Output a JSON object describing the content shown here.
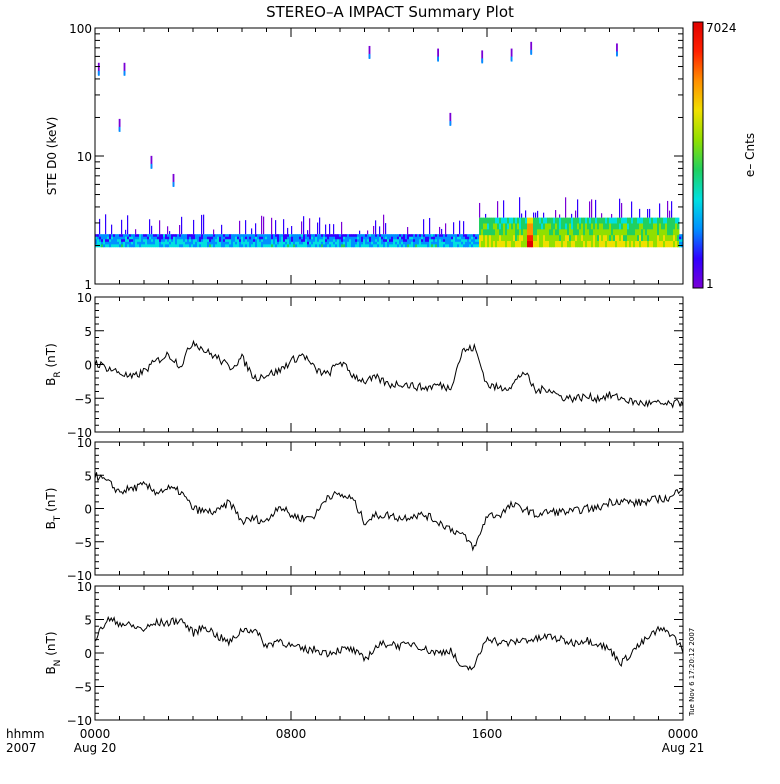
{
  "title": "STEREO–A IMPACT Summary Plot",
  "footer_label": {
    "line1": "hhmm",
    "line2": "2007"
  },
  "timestamp": "Tue Nov  6 17:20:12 2007",
  "x_ticks": [
    {
      "value": 0,
      "label": "0000",
      "sublabel": "Aug 20"
    },
    {
      "value": 8,
      "label": "0800",
      "sublabel": ""
    },
    {
      "value": 16,
      "label": "1600",
      "sublabel": ""
    },
    {
      "value": 24,
      "label": "0000",
      "sublabel": "Aug 21"
    }
  ],
  "chart_data": [
    {
      "type": "heatmap",
      "ylabel": "STE D0 (keV)",
      "yscale": "log",
      "ylim": [
        1,
        100
      ],
      "y_tick_labels": [
        "1",
        "10",
        "100"
      ],
      "x_unit": "hours since 2007-08-20 00:00",
      "xlim": [
        0,
        24
      ],
      "colorbar": {
        "label": "e– Cnts",
        "min": 1,
        "max": 7024,
        "min_label": "1",
        "max_label": "7024"
      },
      "colors": [
        "#7a00d6",
        "#3000ff",
        "#0090ff",
        "#00e0e0",
        "#20d060",
        "#90e000",
        "#f0e000",
        "#ff9000",
        "#ff2000",
        "#e00000"
      ],
      "band": {
        "y_range_keV": [
          1.95,
          2.45
        ],
        "typical_level": "cyan-blue"
      },
      "enhanced_interval": {
        "x_range": [
          15.7,
          23.8
        ],
        "y_range_keV": [
          1.95,
          3.3
        ],
        "level": "green-yellow"
      },
      "peak_interval": {
        "x_range": [
          17.6,
          17.9
        ],
        "level": "red"
      },
      "sporadic_high_points": [
        {
          "x": 0.15,
          "y": 48
        },
        {
          "x": 1.2,
          "y": 48
        },
        {
          "x": 1.0,
          "y": 17.5
        },
        {
          "x": 2.3,
          "y": 9
        },
        {
          "x": 3.2,
          "y": 6.5
        },
        {
          "x": 11.2,
          "y": 65
        },
        {
          "x": 14.0,
          "y": 62
        },
        {
          "x": 15.8,
          "y": 60
        },
        {
          "x": 17.0,
          "y": 62
        },
        {
          "x": 17.8,
          "y": 70
        },
        {
          "x": 21.3,
          "y": 68
        },
        {
          "x": 14.5,
          "y": 19.5
        }
      ]
    },
    {
      "type": "line",
      "ylabel": "B_R (nT)",
      "ylabel_main": "B",
      "ylabel_sub": "R",
      "ylabel_unit": "(nT)",
      "ylim": [
        -10,
        10
      ],
      "y_tick_labels": [
        "−10",
        "−5",
        "0",
        "5",
        "10"
      ],
      "x": [
        0,
        0.5,
        1,
        1.5,
        2,
        2.5,
        3,
        3.5,
        4,
        4.5,
        5,
        5.5,
        6,
        6.5,
        7,
        7.5,
        8,
        8.5,
        9,
        9.5,
        10,
        10.5,
        11,
        11.5,
        12,
        12.5,
        13,
        13.5,
        14,
        14.5,
        15,
        15.5,
        16,
        16.5,
        17,
        17.5,
        18,
        18.5,
        19,
        19.5,
        20,
        20.5,
        21,
        21.5,
        22,
        22.5,
        23,
        23.5,
        24
      ],
      "y": [
        0.3,
        -0.5,
        -1.2,
        -2,
        -1,
        0.5,
        1.5,
        -0.2,
        3.5,
        2,
        1,
        -0.5,
        1,
        -2,
        -1.5,
        -1,
        0.5,
        1.5,
        -0.8,
        -1.5,
        0.5,
        -1.5,
        -2.5,
        -2,
        -3,
        -2.8,
        -3.2,
        -3.5,
        -3,
        -3.5,
        2,
        2.5,
        -3,
        -3.5,
        -3.2,
        -1,
        -4,
        -3.5,
        -4.8,
        -5,
        -4.8,
        -5,
        -4.6,
        -5,
        -5.6,
        -5.8,
        -5.8,
        -6,
        -5.5
      ]
    },
    {
      "type": "line",
      "ylabel": "B_T (nT)",
      "ylabel_main": "B",
      "ylabel_sub": "T",
      "ylabel_unit": "(nT)",
      "ylim": [
        -10,
        10
      ],
      "y_tick_labels": [
        "−10",
        "−5",
        "0",
        "5",
        "10"
      ],
      "x": [
        0,
        0.5,
        1,
        1.5,
        2,
        2.5,
        3,
        3.5,
        4,
        4.5,
        5,
        5.5,
        6,
        6.5,
        7,
        7.5,
        8,
        8.5,
        9,
        9.5,
        10,
        10.5,
        11,
        11.5,
        12,
        12.5,
        13,
        13.5,
        14,
        14.5,
        15,
        15.5,
        16,
        16.5,
        17,
        17.5,
        18,
        18.5,
        19,
        19.5,
        20,
        20.5,
        21,
        21.5,
        22,
        22.5,
        23,
        23.5,
        24
      ],
      "y": [
        5,
        4,
        2.5,
        3,
        3.5,
        2.5,
        3,
        2.5,
        0,
        -0.5,
        -0.5,
        1,
        -2,
        -1.5,
        -2,
        0.5,
        -1,
        -1.5,
        -1,
        2,
        2,
        1.5,
        -2,
        -1,
        -1,
        -1.5,
        -1,
        -1,
        -2,
        -3,
        -4,
        -6,
        -1,
        -1,
        0.5,
        0,
        -1,
        -0.5,
        -0.5,
        -0.5,
        0,
        0,
        1,
        1.2,
        0.8,
        1,
        1.5,
        1.5,
        3.5
      ]
    },
    {
      "type": "line",
      "ylabel": "B_N (nT)",
      "ylabel_main": "B",
      "ylabel_sub": "N",
      "ylabel_unit": "(nT)",
      "ylim": [
        -10,
        10
      ],
      "y_tick_labels": [
        "−10",
        "−5",
        "0",
        "5",
        "10"
      ],
      "x": [
        0,
        0.5,
        1,
        1.5,
        2,
        2.5,
        3,
        3.5,
        4,
        4.5,
        5,
        5.5,
        6,
        6.5,
        7,
        7.5,
        8,
        8.5,
        9,
        9.5,
        10,
        10.5,
        11,
        11.5,
        12,
        12.5,
        13,
        13.5,
        14,
        14.5,
        15,
        15.5,
        16,
        16.5,
        17,
        17.5,
        18,
        18.5,
        19,
        19.5,
        20,
        20.5,
        21,
        21.5,
        22,
        22.5,
        23,
        23.5,
        24
      ],
      "y": [
        2,
        5,
        4.5,
        4,
        3.5,
        4.5,
        4.5,
        5,
        3,
        4,
        2.5,
        1.5,
        3.5,
        3.5,
        1,
        2,
        1,
        0.5,
        0.5,
        0,
        0.5,
        0.5,
        -1,
        1,
        1.5,
        1,
        1.5,
        0.5,
        0,
        0.5,
        -2.5,
        -2,
        2.5,
        1.5,
        1.5,
        2,
        2,
        2.5,
        2,
        1.5,
        2,
        1.5,
        0.5,
        -1.5,
        0.5,
        2,
        3.5,
        3,
        0.5
      ]
    }
  ]
}
